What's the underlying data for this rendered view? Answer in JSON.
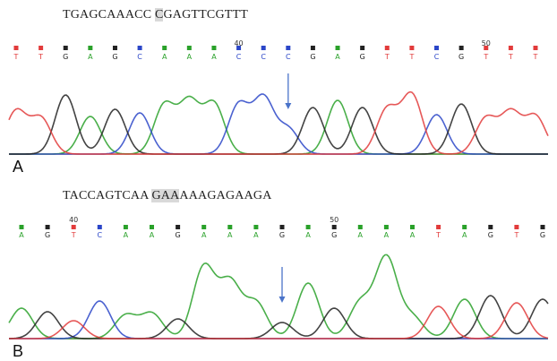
{
  "colors": {
    "A": "#2aa12a",
    "C": "#2b46c8",
    "G": "#222222",
    "T": "#e23b3b",
    "baseline": "#a04040"
  },
  "panels": [
    {
      "letter": "A",
      "sequence_pre": "TGAGCAAACC ",
      "sequence_hl": "C",
      "sequence_post": "GAGTTCGTTT",
      "bases": [
        "T",
        "T",
        "G",
        "A",
        "G",
        "C",
        "A",
        "A",
        "A",
        "C",
        "C",
        "C",
        "G",
        "A",
        "G",
        "T",
        "T",
        "C",
        "G",
        "T",
        "T",
        "T"
      ],
      "position_marks": [
        {
          "index": 9,
          "label": "40"
        },
        {
          "index": 19,
          "label": "50"
        }
      ],
      "arrow_index": 11
    },
    {
      "letter": "B",
      "sequence_pre": "TACCAGTCAA ",
      "sequence_hl": "GAA",
      "sequence_post": "AAAGAGAAGA",
      "bases": [
        "A",
        "G",
        "T",
        "C",
        "A",
        "A",
        "G",
        "A",
        "A",
        "A",
        "G",
        "A",
        "G",
        "A",
        "A",
        "A",
        "T",
        "A",
        "G",
        "T",
        "G"
      ],
      "position_marks": [
        {
          "index": 2,
          "label": "40"
        },
        {
          "index": 12,
          "label": "50"
        }
      ],
      "arrow_index": 10
    }
  ]
}
